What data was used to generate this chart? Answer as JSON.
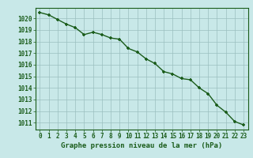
{
  "x": [
    0,
    1,
    2,
    3,
    4,
    5,
    6,
    7,
    8,
    9,
    10,
    11,
    12,
    13,
    14,
    15,
    16,
    17,
    18,
    19,
    20,
    21,
    22,
    23
  ],
  "y": [
    1020.5,
    1020.3,
    1019.9,
    1019.5,
    1019.2,
    1018.6,
    1018.8,
    1018.6,
    1018.3,
    1018.2,
    1017.4,
    1017.1,
    1016.5,
    1016.1,
    1015.4,
    1015.2,
    1014.8,
    1014.7,
    1014.0,
    1013.5,
    1012.5,
    1011.9,
    1011.1,
    1010.8
  ],
  "line_color": "#1a5c1a",
  "marker_color": "#1a5c1a",
  "bg_color": "#c8e8e8",
  "grid_color": "#9bbfbf",
  "ylabel_ticks": [
    1011,
    1012,
    1013,
    1014,
    1015,
    1016,
    1017,
    1018,
    1019,
    1020
  ],
  "ylim": [
    1010.4,
    1020.9
  ],
  "xlim": [
    -0.5,
    23.5
  ],
  "xlabel": "Graphe pression niveau de la mer (hPa)",
  "axis_color": "#1a5c1a",
  "tick_label_color": "#1a5c1a",
  "xlabel_color": "#1a5c1a",
  "xlabel_fontsize": 6.5,
  "tick_fontsize": 5.5,
  "linewidth": 1.0,
  "markersize": 3.0
}
